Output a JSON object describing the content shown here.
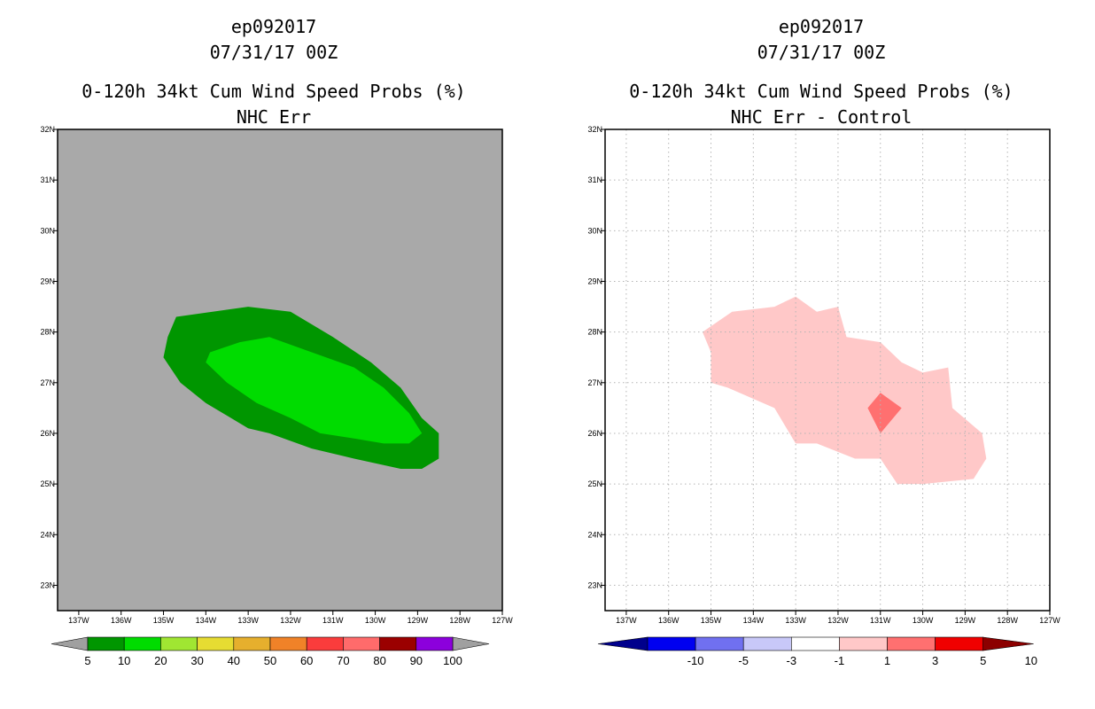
{
  "chart_data": [
    {
      "type": "filled-contour-map",
      "storm_id": "ep092017",
      "datetime": "07/31/17 00Z",
      "title": "0-120h 34kt Cum Wind Speed Probs (%)",
      "subtitle": "NHC Err",
      "background_color": "#a9a9a9",
      "grid": false,
      "lon_range": [
        -137.5,
        -127
      ],
      "lat_range": [
        22.5,
        32
      ],
      "x_ticks": [
        "137W",
        "136W",
        "135W",
        "134W",
        "133W",
        "132W",
        "131W",
        "130W",
        "129W",
        "128W",
        "127W"
      ],
      "y_ticks": [
        "23N",
        "24N",
        "25N",
        "26N",
        "27N",
        "28N",
        "29N",
        "30N",
        "31N",
        "32N"
      ],
      "colorbar": {
        "labels": [
          "5",
          "10",
          "20",
          "30",
          "40",
          "50",
          "60",
          "70",
          "80",
          "90",
          "100"
        ],
        "colors": [
          "#009600",
          "#00dc00",
          "#a0e632",
          "#e6dc32",
          "#e6af2d",
          "#f08228",
          "#fa3c3c",
          "#ff6b6b",
          "#9b0000",
          "#8c00dc",
          "#a0a0a0"
        ]
      },
      "contours": [
        {
          "level": "5-10",
          "color": "#009600",
          "polygon": [
            [
              -134.7,
              28.3
            ],
            [
              -133.0,
              28.5
            ],
            [
              -132.0,
              28.4
            ],
            [
              -131.0,
              27.9
            ],
            [
              -130.1,
              27.4
            ],
            [
              -129.4,
              26.9
            ],
            [
              -128.9,
              26.3
            ],
            [
              -128.5,
              26.0
            ],
            [
              -128.5,
              25.5
            ],
            [
              -128.9,
              25.3
            ],
            [
              -129.4,
              25.3
            ],
            [
              -130.5,
              25.5
            ],
            [
              -131.5,
              25.7
            ],
            [
              -132.5,
              26.0
            ],
            [
              -133.0,
              26.1
            ],
            [
              -134.0,
              26.6
            ],
            [
              -134.6,
              27.0
            ],
            [
              -135.0,
              27.5
            ],
            [
              -134.9,
              27.9
            ]
          ]
        },
        {
          "level": "10-20",
          "color": "#00dc00",
          "polygon": [
            [
              -133.9,
              27.6
            ],
            [
              -133.2,
              27.8
            ],
            [
              -132.5,
              27.9
            ],
            [
              -131.5,
              27.6
            ],
            [
              -130.5,
              27.3
            ],
            [
              -129.8,
              26.9
            ],
            [
              -129.2,
              26.4
            ],
            [
              -128.9,
              26.0
            ],
            [
              -129.2,
              25.8
            ],
            [
              -129.8,
              25.8
            ],
            [
              -130.5,
              25.9
            ],
            [
              -131.3,
              26.0
            ],
            [
              -132.0,
              26.3
            ],
            [
              -132.8,
              26.6
            ],
            [
              -133.5,
              27.0
            ],
            [
              -134.0,
              27.4
            ]
          ]
        }
      ]
    },
    {
      "type": "filled-contour-map",
      "storm_id": "ep092017",
      "datetime": "07/31/17 00Z",
      "title": "0-120h 34kt Cum Wind Speed Probs (%)",
      "subtitle": "NHC Err - Control",
      "background_color": "#ffffff",
      "grid": true,
      "lon_range": [
        -137.5,
        -127
      ],
      "lat_range": [
        22.5,
        32
      ],
      "x_ticks": [
        "137W",
        "136W",
        "135W",
        "134W",
        "133W",
        "132W",
        "131W",
        "130W",
        "129W",
        "128W",
        "127W"
      ],
      "y_ticks": [
        "23N",
        "24N",
        "25N",
        "26N",
        "27N",
        "28N",
        "29N",
        "30N",
        "31N",
        "32N"
      ],
      "colorbar": {
        "labels": [
          "-10",
          "-5",
          "-3",
          "-1",
          "1",
          "3",
          "5",
          "10"
        ],
        "colors": [
          "#00008c",
          "#0000f0",
          "#7070f0",
          "#c8c8f8",
          "#ffffff",
          "#ffc8c8",
          "#ff7070",
          "#f00000",
          "#8c0000"
        ]
      },
      "contours": [
        {
          "level": "1-3",
          "color": "#ffc8c8",
          "polygon": [
            [
              -135.2,
              28.0
            ],
            [
              -134.5,
              28.4
            ],
            [
              -133.5,
              28.5
            ],
            [
              -133.0,
              28.7
            ],
            [
              -132.5,
              28.4
            ],
            [
              -132.0,
              28.5
            ],
            [
              -131.8,
              27.9
            ],
            [
              -131.0,
              27.8
            ],
            [
              -130.5,
              27.4
            ],
            [
              -130.0,
              27.2
            ],
            [
              -129.4,
              27.3
            ],
            [
              -129.3,
              26.5
            ],
            [
              -128.6,
              26.0
            ],
            [
              -128.5,
              25.5
            ],
            [
              -128.8,
              25.1
            ],
            [
              -130.0,
              25.0
            ],
            [
              -130.6,
              25.0
            ],
            [
              -131.0,
              25.5
            ],
            [
              -131.6,
              25.5
            ],
            [
              -132.5,
              25.8
            ],
            [
              -133.0,
              25.8
            ],
            [
              -133.5,
              26.5
            ],
            [
              -134.6,
              26.9
            ],
            [
              -135.0,
              27.0
            ],
            [
              -135.0,
              27.6
            ]
          ]
        },
        {
          "level": "3-5",
          "color": "#ff7070",
          "polygon": [
            [
              -131.3,
              26.5
            ],
            [
              -131.0,
              26.8
            ],
            [
              -130.5,
              26.5
            ],
            [
              -131.0,
              26.0
            ]
          ]
        }
      ]
    }
  ]
}
